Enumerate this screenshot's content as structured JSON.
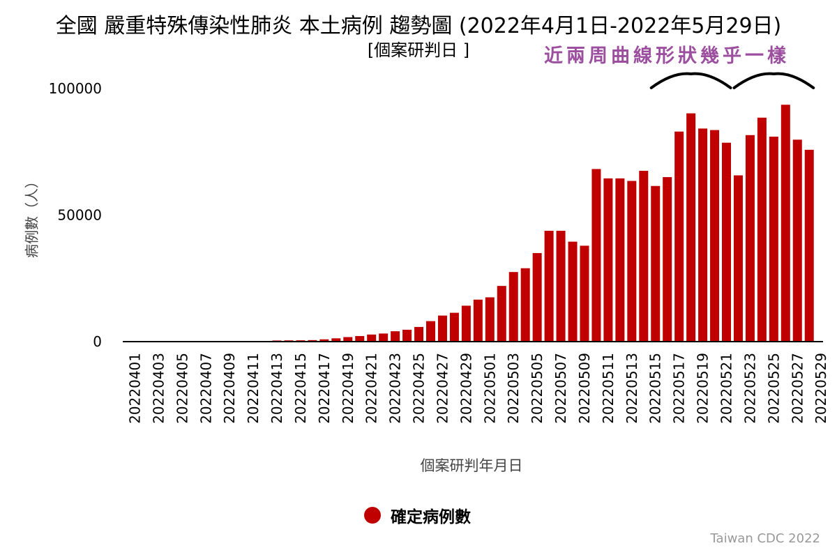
{
  "title": "全國 嚴重特殊傳染性肺炎 本土病例 趨勢圖 (2022年4月1日-2022年5月29日)",
  "subtitle": "[個案研判日 ]",
  "annotation": "近兩周曲線形狀幾乎一樣",
  "credit": "Taiwan CDC 2022",
  "colors": {
    "bar": "#c00000",
    "annotation": "#9b4f9e"
  },
  "chart_data": {
    "type": "bar",
    "title": "全國 嚴重特殊傳染性肺炎 本土病例 趨勢圖 (2022年4月1日-2022年5月29日)",
    "xlabel": "個案研判年月日",
    "ylabel": "病例數（人）",
    "ylim": [
      0,
      100000
    ],
    "yticks": [
      0,
      50000,
      100000
    ],
    "grid": false,
    "legend_position": "bottom-center",
    "tick_labels": [
      "20220401",
      "20220403",
      "20220405",
      "20220407",
      "20220409",
      "20220411",
      "20220413",
      "20220415",
      "20220417",
      "20220419",
      "20220421",
      "20220423",
      "20220425",
      "20220427",
      "20220429",
      "20220501",
      "20220503",
      "20220505",
      "20220507",
      "20220509",
      "20220511",
      "20220513",
      "20220515",
      "20220517",
      "20220519",
      "20220521",
      "20220523",
      "20220525",
      "20220527",
      "20220529"
    ],
    "categories": [
      "20220401",
      "20220402",
      "20220403",
      "20220404",
      "20220405",
      "20220406",
      "20220407",
      "20220408",
      "20220409",
      "20220410",
      "20220411",
      "20220412",
      "20220413",
      "20220414",
      "20220415",
      "20220416",
      "20220417",
      "20220418",
      "20220419",
      "20220420",
      "20220421",
      "20220422",
      "20220423",
      "20220424",
      "20220425",
      "20220426",
      "20220427",
      "20220428",
      "20220429",
      "20220430",
      "20220501",
      "20220502",
      "20220503",
      "20220504",
      "20220505",
      "20220506",
      "20220507",
      "20220508",
      "20220509",
      "20220510",
      "20220511",
      "20220512",
      "20220513",
      "20220514",
      "20220515",
      "20220516",
      "20220517",
      "20220518",
      "20220519",
      "20220520",
      "20220521",
      "20220522",
      "20220523",
      "20220524",
      "20220525",
      "20220526",
      "20220527",
      "20220528",
      "20220529"
    ],
    "series": [
      {
        "name": "確定病例數",
        "color": "#c00000",
        "values": [
          30,
          40,
          50,
          60,
          70,
          80,
          90,
          100,
          120,
          140,
          160,
          180,
          450,
          500,
          520,
          600,
          900,
          1300,
          1800,
          2200,
          2800,
          3200,
          4100,
          4700,
          5800,
          8100,
          10300,
          11400,
          14200,
          16600,
          17500,
          22000,
          27500,
          29000,
          35000,
          43800,
          43800,
          39500,
          37900,
          68200,
          64500,
          64500,
          63500,
          67500,
          61500,
          65000,
          83000,
          90200,
          84200,
          83600,
          78600,
          65700,
          81600,
          88500,
          81000,
          93600,
          79800,
          75800,
          null
        ]
      }
    ],
    "annotation_marks": [
      {
        "text": "近兩周曲線形狀幾乎一樣",
        "spans": [
          [
            "20220515",
            "20220521"
          ],
          [
            "20220522",
            "20220528"
          ]
        ]
      }
    ]
  }
}
